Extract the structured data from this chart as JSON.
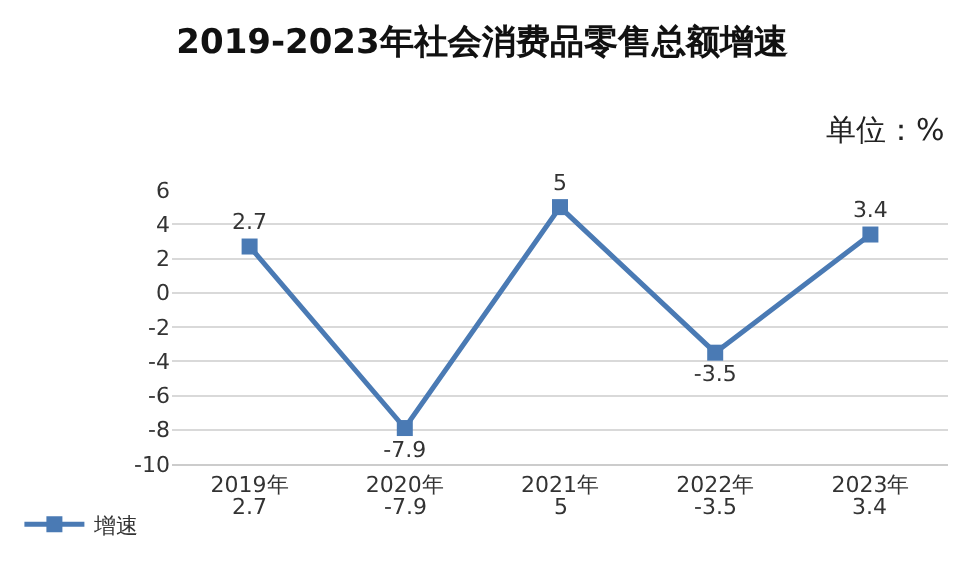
{
  "chart_data": {
    "type": "line",
    "title": "2019-2023年社会消费品零售总额增速",
    "subtitle": "单位：%",
    "categories": [
      "2019年",
      "2020年",
      "2021年",
      "2022年",
      "2023年"
    ],
    "series": [
      {
        "name": "增速",
        "color": "#4a7ab4",
        "values": [
          2.7,
          -7.9,
          5,
          -3.5,
          3.4
        ],
        "value_labels": [
          "2.7",
          "-7.9",
          "5",
          "-3.5",
          "3.4"
        ]
      }
    ],
    "ylim": [
      -10,
      6
    ],
    "yticks": [
      -10,
      -8,
      -6,
      -4,
      -2,
      0,
      2,
      4,
      6
    ],
    "grid": "y",
    "legend": "bottom left",
    "marker": "square",
    "line_style": "solid",
    "annotations": [
      "2.7",
      "-7.9",
      "5",
      "-3.5",
      "3.4"
    ]
  }
}
